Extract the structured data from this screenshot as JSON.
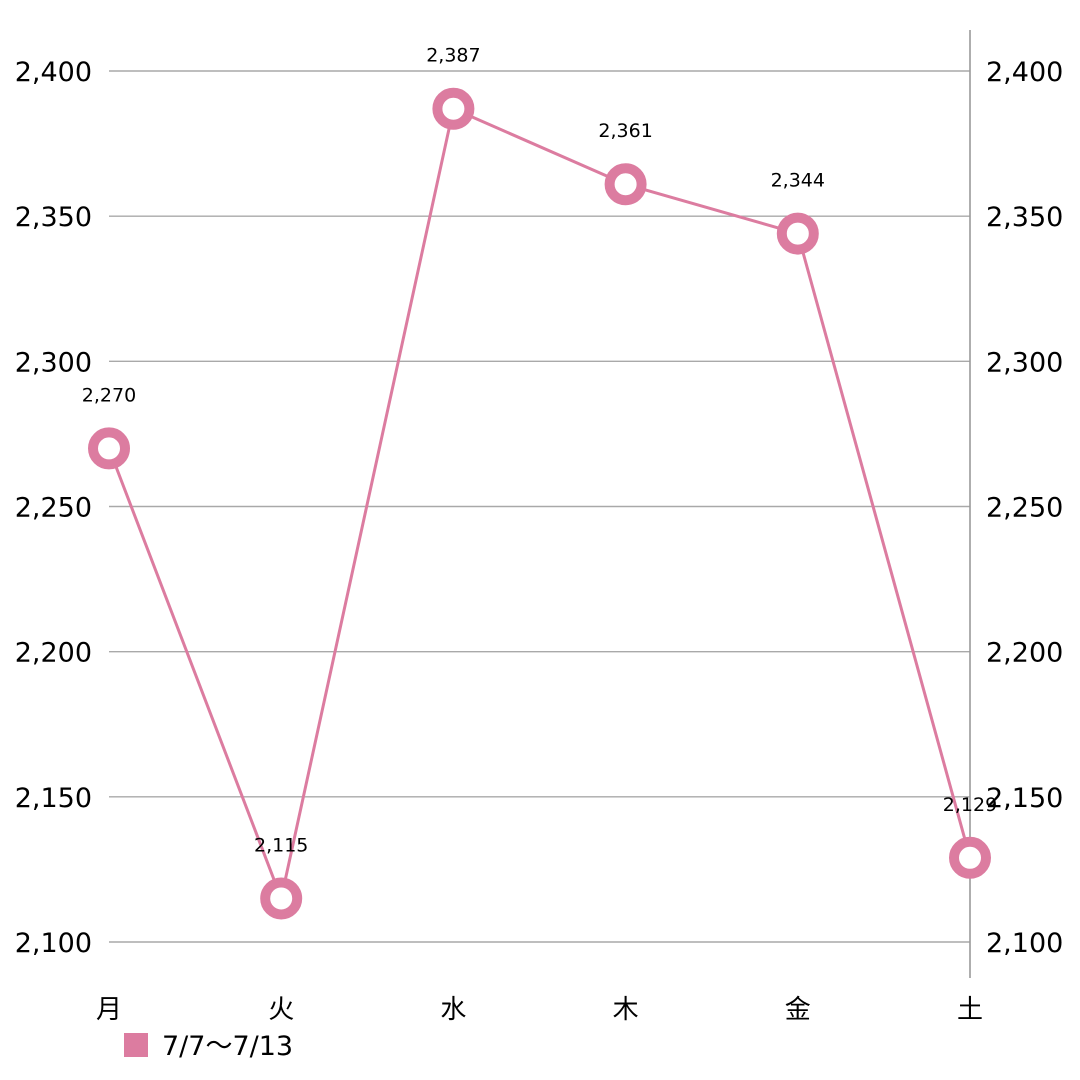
{
  "chart_data": {
    "type": "line",
    "categories": [
      "月",
      "火",
      "水",
      "木",
      "金",
      "土"
    ],
    "series": [
      {
        "name": "7/7～7/13",
        "values": [
          2270,
          2115,
          2387,
          2361,
          2344,
          2129
        ],
        "labels": [
          "2,270",
          "2,115",
          "2,387",
          "2,361",
          "2,344",
          "2,129"
        ],
        "color": "#dc7ca0"
      }
    ],
    "ylim": [
      2100,
      2400
    ],
    "yticks": [
      2100,
      2150,
      2200,
      2250,
      2300,
      2350,
      2400
    ],
    "ytick_labels": [
      "2,100",
      "2,150",
      "2,200",
      "2,250",
      "2,300",
      "2,350",
      "2,400"
    ],
    "y_axis_sides": [
      "left",
      "right"
    ],
    "grid": true,
    "legend": "bottom-left",
    "title": "",
    "xlabel": "",
    "ylabel": ""
  }
}
